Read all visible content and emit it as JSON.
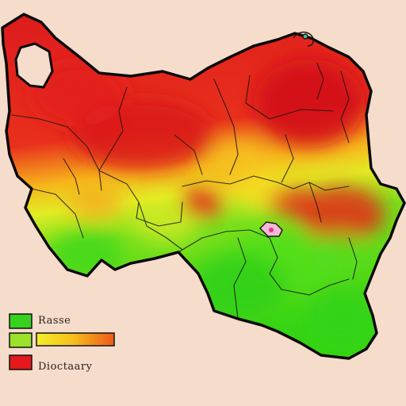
{
  "colors": {
    "background": "#f5dccb",
    "high": "#e0161d",
    "mid": "#f7d31c",
    "low": "#3ee31c",
    "border": "#111111"
  },
  "legend": {
    "items": [
      {
        "swatch_color": "#37d11f",
        "label": "Rasse"
      },
      {
        "swatch_color": "#9be22a",
        "label": "",
        "gradient": [
          "#f4ef2a",
          "#f6c11d",
          "#ee5a1a"
        ]
      },
      {
        "swatch_color": "#e3191c",
        "label": "Dioctaary"
      }
    ]
  }
}
